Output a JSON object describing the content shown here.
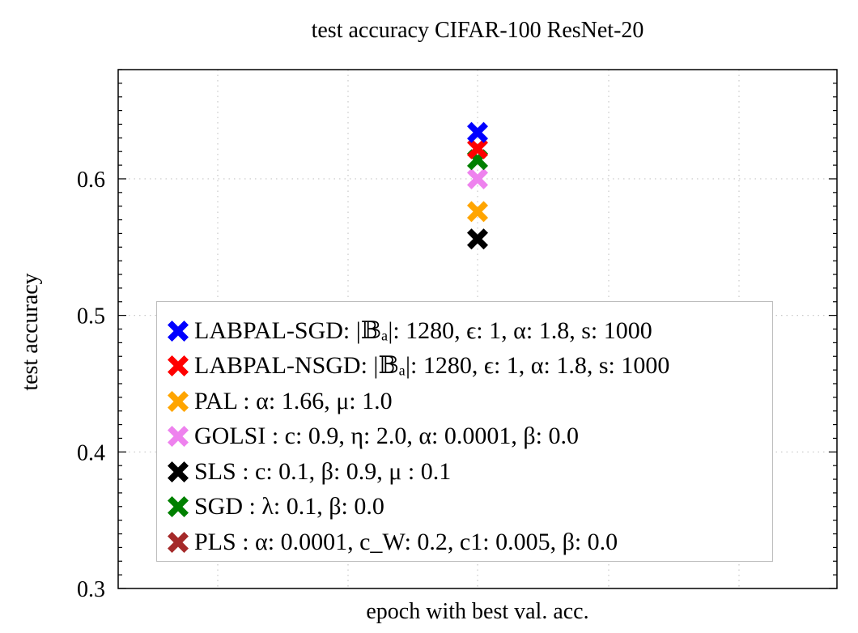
{
  "chart_data": {
    "type": "scatter",
    "title": "test accuracy CIFAR-100 ResNet-20",
    "xlabel": "epoch with best val. acc.",
    "ylabel": "test accuracy",
    "ylim": [
      0.3,
      0.68
    ],
    "yticks": [
      0.3,
      0.4,
      0.5,
      0.6
    ],
    "y_tick_labels": [
      "0.3",
      "0.4",
      "0.5",
      "0.6"
    ],
    "grid": true,
    "legend_position": "bottom-center",
    "series": [
      {
        "name": "LABPAL-SGD: |𝔹ₐ|: 1280, ϵ: 1, α: 1.8, s: 1000",
        "color": "#0000ff",
        "y": 0.634
      },
      {
        "name": "LABPAL-NSGD: |𝔹ₐ|: 1280, ϵ: 1, α: 1.8, s: 1000",
        "color": "#ff0000",
        "y": 0.622
      },
      {
        "name": "PAL : α: 1.66, μ: 1.0",
        "color": "#ffa500",
        "y": 0.576
      },
      {
        "name": "GOLSI : c: 0.9, η: 2.0, α: 0.0001, β: 0.0",
        "color": "#ee82ee",
        "y": 0.6
      },
      {
        "name": "SLS : c: 0.1, β: 0.9, μ : 0.1",
        "color": "#000000",
        "y": 0.556
      },
      {
        "name": "SGD : λ: 0.1, β: 0.0",
        "color": "#008000",
        "y": 0.614
      },
      {
        "name": "PLS : α: 0.0001, c_W: 0.2, c1: 0.005, β: 0.0",
        "color": "#a52a2a",
        "y": null
      }
    ]
  }
}
